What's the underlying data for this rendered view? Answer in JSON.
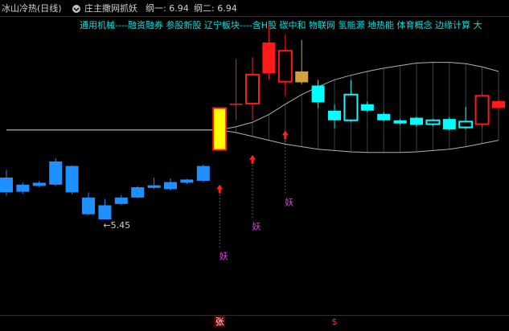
{
  "chart_data": {
    "type": "candlestick",
    "title": "冰山冷热(日线)",
    "indicator": "庄主撒网抓妖",
    "indicator_labels": [
      "纲一: 6.94",
      "纲二: 6.94"
    ],
    "concepts": "通用机械----融资融券 参股新股 辽宁板块----含H股 碳中和 物联网 氢能源 地热能 体育概念 边缘计算 大",
    "ylim": [
      4.24,
      8.61
    ],
    "candles": [
      {
        "o": 6.1,
        "h": 6.22,
        "l": 5.82,
        "c": 5.87,
        "color": "#1e90ff",
        "fill": "#1e90ff"
      },
      {
        "o": 5.99,
        "h": 6.02,
        "l": 5.85,
        "c": 5.88,
        "color": "#1e90ff",
        "fill": "#1e90ff"
      },
      {
        "o": 6.02,
        "h": 6.05,
        "l": 5.95,
        "c": 5.97,
        "color": "#1e90ff",
        "fill": "#1e90ff"
      },
      {
        "o": 6.35,
        "h": 6.4,
        "l": 5.97,
        "c": 5.99,
        "color": "#1e90ff",
        "fill": "#1e90ff"
      },
      {
        "o": 6.28,
        "h": 6.29,
        "l": 5.84,
        "c": 5.87,
        "color": "#1e90ff",
        "fill": "#1e90ff"
      },
      {
        "o": 5.79,
        "h": 5.87,
        "l": 5.52,
        "c": 5.53,
        "color": "#1e90ff",
        "fill": "#1e90ff"
      },
      {
        "o": 5.67,
        "h": 5.77,
        "l": 5.45,
        "c": 5.45,
        "color": "#1e90ff",
        "fill": "#1e90ff"
      },
      {
        "o": 5.79,
        "h": 5.83,
        "l": 5.67,
        "c": 5.69,
        "color": "#1e90ff",
        "fill": "#1e90ff"
      },
      {
        "o": 5.95,
        "h": 5.97,
        "l": 5.78,
        "c": 5.79,
        "color": "#1e90ff",
        "fill": "#1e90ff"
      },
      {
        "o": 5.98,
        "h": 6.1,
        "l": 5.92,
        "c": 5.94,
        "color": "#1e90ff",
        "fill": "#1e90ff"
      },
      {
        "o": 6.03,
        "h": 6.09,
        "l": 5.9,
        "c": 5.92,
        "color": "#1e90ff",
        "fill": "#1e90ff"
      },
      {
        "o": 6.07,
        "h": 6.08,
        "l": 6.0,
        "c": 6.02,
        "color": "#1e90ff",
        "fill": "#1e90ff"
      },
      {
        "o": 6.28,
        "h": 6.3,
        "l": 6.03,
        "c": 6.05,
        "color": "#1e90ff",
        "fill": "#1e90ff"
      },
      {
        "o": 6.53,
        "h": 7.18,
        "l": 6.53,
        "c": 7.18,
        "color": "#ff1a1a",
        "fill": "#ffff00"
      },
      {
        "o": 7.23,
        "h": 7.94,
        "l": 6.99,
        "c": 7.25,
        "color": "#ff1a1a",
        "fill": "#ff1a1a"
      },
      {
        "o": 7.25,
        "h": 7.97,
        "l": 6.99,
        "c": 7.7,
        "color": "#ff1a1a",
        "fill": "#000000"
      },
      {
        "o": 7.72,
        "h": 8.49,
        "l": 7.62,
        "c": 8.2,
        "color": "#ff1a1a",
        "fill": "#ff1a1a"
      },
      {
        "o": 7.59,
        "h": 8.33,
        "l": 7.37,
        "c": 8.07,
        "color": "#ff1a1a",
        "fill": "#000000"
      },
      {
        "o": 7.75,
        "h": 8.24,
        "l": 7.55,
        "c": 7.58,
        "color": "#d4a040",
        "fill": "#d4a040"
      },
      {
        "o": 7.53,
        "h": 7.62,
        "l": 7.18,
        "c": 7.27,
        "color": "#00ffff",
        "fill": "#00ffff"
      },
      {
        "o": 7.14,
        "h": 7.24,
        "l": 6.87,
        "c": 6.99,
        "color": "#00ffff",
        "fill": "#00ffff"
      },
      {
        "o": 6.99,
        "h": 7.62,
        "l": 6.97,
        "c": 7.39,
        "color": "#00ffff",
        "fill": "#000000"
      },
      {
        "o": 7.24,
        "h": 7.28,
        "l": 7.12,
        "c": 7.14,
        "color": "#00ffff",
        "fill": "#00ffff"
      },
      {
        "o": 7.09,
        "h": 7.12,
        "l": 6.97,
        "c": 6.99,
        "color": "#00ffff",
        "fill": "#00ffff"
      },
      {
        "o": 6.99,
        "h": 7.01,
        "l": 6.92,
        "c": 6.94,
        "color": "#00ffff",
        "fill": "#00ffff"
      },
      {
        "o": 7.03,
        "h": 7.05,
        "l": 6.89,
        "c": 6.92,
        "color": "#00ffff",
        "fill": "#00ffff"
      },
      {
        "o": 6.93,
        "h": 7.01,
        "l": 6.9,
        "c": 6.99,
        "color": "#00ffff",
        "fill": "#000000"
      },
      {
        "o": 7.01,
        "h": 7.04,
        "l": 6.83,
        "c": 6.85,
        "color": "#00ffff",
        "fill": "#00ffff"
      },
      {
        "o": 6.88,
        "h": 7.2,
        "l": 6.85,
        "c": 6.97,
        "color": "#00ffff",
        "fill": "#000000"
      },
      {
        "o": 6.93,
        "h": 7.43,
        "l": 6.87,
        "c": 7.37,
        "color": "#ff1a1a",
        "fill": "#000000"
      },
      {
        "o": 7.29,
        "h": 7.32,
        "l": 7.15,
        "c": 7.18,
        "color": "#ff1a1a",
        "fill": "#ff1a1a"
      }
    ],
    "band_upper": [
      6.84,
      6.84,
      6.84,
      6.84,
      6.84,
      6.84,
      6.84,
      6.84,
      6.84,
      6.84,
      6.84,
      6.84,
      6.84,
      6.84,
      6.89,
      6.96,
      7.08,
      7.24,
      7.39,
      7.51,
      7.62,
      7.69,
      7.75,
      7.8,
      7.84,
      7.88,
      7.89,
      7.89,
      7.87,
      7.82,
      7.75
    ],
    "band_lower": [
      6.84,
      6.84,
      6.84,
      6.84,
      6.84,
      6.84,
      6.84,
      6.84,
      6.84,
      6.84,
      6.84,
      6.84,
      6.84,
      6.84,
      6.8,
      6.74,
      6.68,
      6.62,
      6.58,
      6.54,
      6.52,
      6.5,
      6.49,
      6.49,
      6.49,
      6.5,
      6.52,
      6.54,
      6.58,
      6.63,
      6.68
    ],
    "band_color": "#b0b0b0",
    "signals": [
      {
        "index": 13,
        "label": "妖"
      },
      {
        "index": 15,
        "label": "妖"
      },
      {
        "index": 17,
        "label": "妖"
      }
    ],
    "signal_color": "#ff2020",
    "signal_label_color": "#e040e0",
    "annotation": {
      "index": 6,
      "text": "←5.45"
    },
    "bottom_markers": [
      {
        "index": 13,
        "label": "张"
      },
      {
        "index": 20,
        "label": "$"
      }
    ]
  }
}
